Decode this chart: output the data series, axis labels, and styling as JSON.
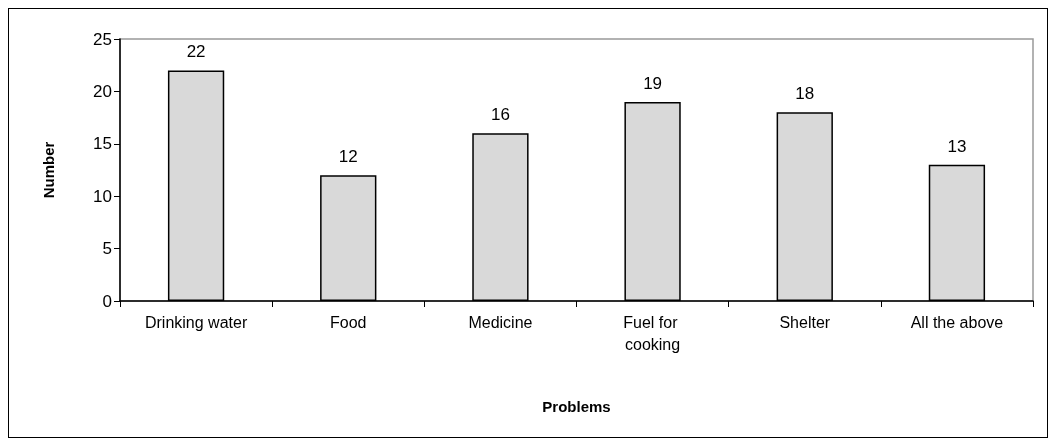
{
  "chart_data": {
    "type": "bar",
    "xlabel": "Problems",
    "ylabel": "Number",
    "categories": [
      "Drinking water",
      "Food",
      "Medicine",
      "Fuel for cooking",
      "Shelter",
      "All the above"
    ],
    "values": [
      22,
      12,
      16,
      19,
      18,
      13
    ],
    "color": "#d9d9d9",
    "ylim": [
      0,
      25
    ],
    "yticks": [
      0,
      5,
      10,
      15,
      20,
      25
    ],
    "grid": false,
    "data_labels": true
  }
}
